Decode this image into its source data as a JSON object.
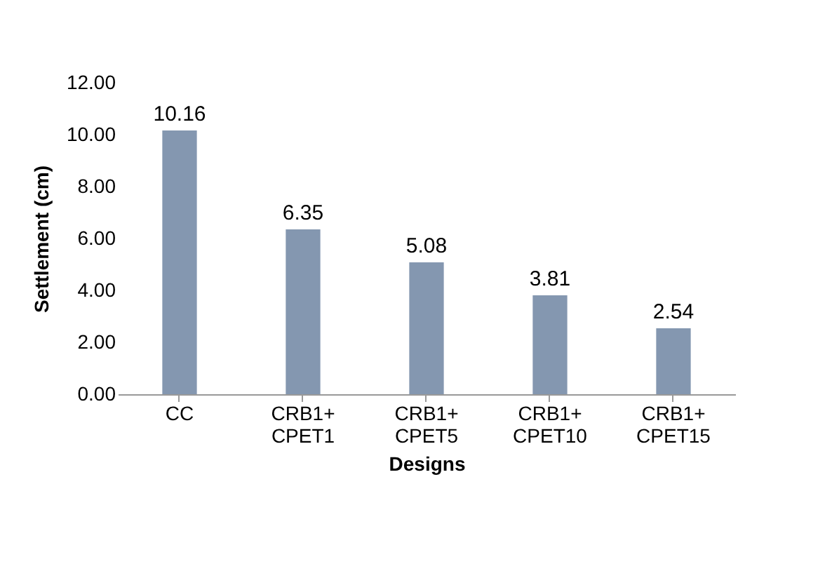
{
  "chart_data": {
    "type": "bar",
    "xlabel": "Designs",
    "ylabel": "Settlement (cm)",
    "categories": [
      "CC",
      "CRB1+ CPET1",
      "CRB1+ CPET5",
      "CRB1+ CPET10",
      "CRB1+ CPET15"
    ],
    "values": [
      10.16,
      6.35,
      5.08,
      3.81,
      2.54
    ],
    "color": "#8497b0",
    "ylim": [
      0,
      12
    ],
    "yticks": [
      {
        "value": 0,
        "label": "0.00"
      },
      {
        "value": 2,
        "label": "2.00"
      },
      {
        "value": 4,
        "label": "4.00"
      },
      {
        "value": 6,
        "label": "6.00"
      },
      {
        "value": 8,
        "label": "8.00"
      },
      {
        "value": 10,
        "label": "10.00"
      },
      {
        "value": 12,
        "label": "12.00"
      }
    ],
    "data_labels": true,
    "grid": false
  }
}
